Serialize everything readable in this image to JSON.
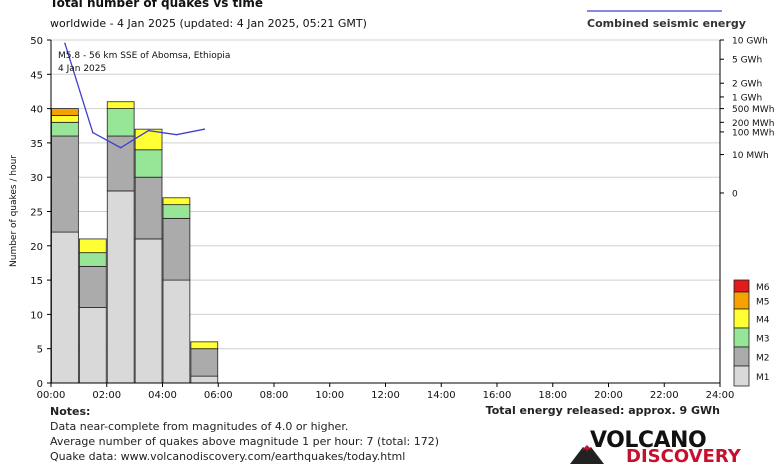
{
  "chart_data": {
    "type": "bar",
    "title": "Total number of quakes vs time",
    "subtitle": "worldwide -  4 Jan 2025 (updated: 4 Jan 2025, 05:21 GMT)",
    "ylabel": "Number of quakes / hour",
    "ylim": [
      0,
      50
    ],
    "y_ticks": [
      "0",
      "5",
      "10",
      "15",
      "20",
      "25",
      "30",
      "35",
      "40",
      "45",
      "50"
    ],
    "x_ticks": [
      "00:00",
      "02:00",
      "04:00",
      "06:00",
      "08:00",
      "10:00",
      "12:00",
      "14:00",
      "16:00",
      "18:00",
      "20:00",
      "22:00",
      "24:00"
    ],
    "categories": [
      "00:00",
      "01:00",
      "02:00",
      "03:00",
      "04:00",
      "05:00"
    ],
    "stacks_order": [
      "M1",
      "M2",
      "M3",
      "M4",
      "M5",
      "M6"
    ],
    "series": [
      {
        "name": "M1",
        "color": "#d9d9d9",
        "values": [
          22,
          11,
          28,
          21,
          15,
          1
        ]
      },
      {
        "name": "M2",
        "color": "#ababab",
        "values": [
          14,
          6,
          8,
          9,
          9,
          4
        ]
      },
      {
        "name": "M3",
        "color": "#97e597",
        "values": [
          2,
          2,
          4,
          4,
          2,
          0
        ]
      },
      {
        "name": "M4",
        "color": "#ffff33",
        "values": [
          1,
          2,
          1,
          3,
          1,
          1
        ]
      },
      {
        "name": "M5",
        "color": "#f5a100",
        "values": [
          1,
          0,
          0,
          0,
          0,
          0
        ]
      },
      {
        "name": "M6",
        "color": "#e41a1c",
        "values": [
          0,
          0,
          0,
          0,
          0,
          0
        ]
      }
    ],
    "energy_series": {
      "name": "Combined seismic energy",
      "color": "#4040d0",
      "x": [
        "00:30",
        "01:30",
        "02:30",
        "03:30",
        "04:30",
        "05:30"
      ],
      "y": [
        49.5,
        36.5,
        34.3,
        36.8,
        36.2,
        37.0
      ]
    },
    "energy_axis_ticks": [
      {
        "label": "10 GWh",
        "at": 50
      },
      {
        "label": "5 GWh",
        "at": 47.2
      },
      {
        "label": "2 GWh",
        "at": 43.7
      },
      {
        "label": "1 GWh",
        "at": 41.7
      },
      {
        "label": "500 MWh",
        "at": 40
      },
      {
        "label": "200 MWh",
        "at": 38
      },
      {
        "label": "100 MWh",
        "at": 36.6
      },
      {
        "label": "10 MWh",
        "at": 33.3
      },
      {
        "label": "0",
        "at": 27.7
      }
    ],
    "annotation": {
      "line1": "M5.8 - 56 km SSE of Abomsa, Ethiopia",
      "line2": "4 Jan 2025"
    },
    "legend": {
      "placement": "right-bottom",
      "items": [
        {
          "label": "M6",
          "color": "#e41a1c"
        },
        {
          "label": "M5",
          "color": "#f5a100"
        },
        {
          "label": "M4",
          "color": "#ffff33"
        },
        {
          "label": "M3",
          "color": "#97e597"
        },
        {
          "label": "M2",
          "color": "#ababab"
        },
        {
          "label": "M1",
          "color": "#d9d9d9"
        }
      ]
    },
    "grid": true
  },
  "notes": {
    "title": "Notes:",
    "lines": [
      "Data near-complete from magnitudes of 4.0 or higher.",
      "Average number of quakes above magnitude 1 per hour: 7 (total: 172)",
      "Quake data: www.volcanodiscovery.com/earthquakes/today.html"
    ]
  },
  "energy_total": "Total energy released: approx. 9 GWh",
  "logo": {
    "word1": "VOLCANO",
    "word2": "DISCOVERY"
  }
}
